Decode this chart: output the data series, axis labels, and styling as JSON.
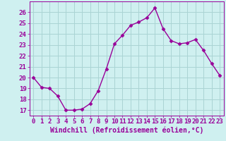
{
  "x": [
    0,
    1,
    2,
    3,
    4,
    5,
    6,
    7,
    8,
    9,
    10,
    11,
    12,
    13,
    14,
    15,
    16,
    17,
    18,
    19,
    20,
    21,
    22,
    23
  ],
  "y": [
    20.0,
    19.1,
    19.0,
    18.3,
    17.0,
    17.0,
    17.1,
    17.6,
    18.8,
    20.8,
    23.1,
    23.9,
    24.8,
    25.1,
    25.5,
    26.4,
    24.5,
    23.4,
    23.1,
    23.2,
    23.5,
    22.5,
    21.3,
    20.2
  ],
  "line_color": "#990099",
  "marker": "D",
  "marker_size": 2.5,
  "line_width": 1.0,
  "bg_color": "#cff0f0",
  "grid_color": "#aad4d4",
  "xlabel": "Windchill (Refroidissement éolien,°C)",
  "xlabel_fontsize": 7,
  "tick_fontsize": 6.5,
  "ylim": [
    16.5,
    27.0
  ],
  "xlim": [
    -0.5,
    23.5
  ],
  "yticks": [
    17,
    18,
    19,
    20,
    21,
    22,
    23,
    24,
    25,
    26
  ],
  "xticks": [
    0,
    1,
    2,
    3,
    4,
    5,
    6,
    7,
    8,
    9,
    10,
    11,
    12,
    13,
    14,
    15,
    16,
    17,
    18,
    19,
    20,
    21,
    22,
    23
  ]
}
